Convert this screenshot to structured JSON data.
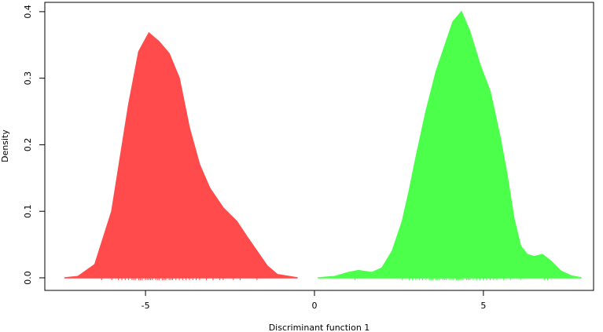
{
  "chart_data": {
    "type": "density",
    "x_label": "Discriminant function 1",
    "y_label": "Density",
    "xlim": [
      -7.98,
      8.26
    ],
    "ylim": [
      -0.0189,
      0.414
    ],
    "xticks": [
      -5,
      0,
      5
    ],
    "yticks": [
      {
        "value": 0,
        "label": "0.0"
      },
      0.1,
      0.2,
      0.3,
      0.4
    ],
    "series": [
      {
        "color": "#ff4b4b",
        "x": [
          -7.4,
          -7.0,
          -6.5,
          -6.0,
          -5.5,
          -5.2,
          -4.9,
          -4.6,
          -4.3,
          -4.0,
          -3.7,
          -3.4,
          -3.1,
          -2.7,
          -2.3,
          -2.0,
          -1.7,
          -1.4,
          -1.1,
          -0.5
        ],
        "values": [
          0.0,
          0.002,
          0.02,
          0.1,
          0.26,
          0.34,
          0.368,
          0.355,
          0.337,
          0.3,
          0.225,
          0.17,
          0.135,
          0.105,
          0.085,
          0.062,
          0.04,
          0.018,
          0.005,
          0.0
        ],
        "rug": [
          -6.3,
          -6.0,
          -5.8,
          -5.7,
          -5.6,
          -5.5,
          -5.4,
          -5.35,
          -5.3,
          -5.2,
          -5.15,
          -5.1,
          -5.0,
          -4.95,
          -4.9,
          -4.85,
          -4.8,
          -4.7,
          -4.65,
          -4.6,
          -4.5,
          -4.45,
          -4.4,
          -4.3,
          -4.25,
          -4.2,
          -4.1,
          -4.0,
          -3.9,
          -3.8,
          -3.7,
          -3.6,
          -3.5,
          -3.4,
          -3.2,
          -3.0,
          -2.8,
          -2.7,
          -2.4,
          -2.2,
          -1.7
        ]
      },
      {
        "color": "#4bff4b",
        "x": [
          0.1,
          0.6,
          1.0,
          1.3,
          1.7,
          2.0,
          2.3,
          2.6,
          2.8,
          3.0,
          3.3,
          3.6,
          3.9,
          4.1,
          4.35,
          4.6,
          4.9,
          5.2,
          5.5,
          5.7,
          5.9,
          6.1,
          6.3,
          6.5,
          6.75,
          7.0,
          7.3,
          7.6,
          7.9
        ],
        "values": [
          0.0,
          0.002,
          0.008,
          0.011,
          0.008,
          0.015,
          0.04,
          0.085,
          0.13,
          0.18,
          0.25,
          0.31,
          0.355,
          0.385,
          0.4,
          0.37,
          0.32,
          0.28,
          0.21,
          0.155,
          0.09,
          0.048,
          0.035,
          0.032,
          0.035,
          0.025,
          0.01,
          0.003,
          0.0
        ],
        "rug": [
          1.2,
          2.6,
          2.8,
          2.9,
          3.0,
          3.1,
          3.2,
          3.3,
          3.4,
          3.45,
          3.5,
          3.6,
          3.65,
          3.7,
          3.8,
          3.85,
          3.9,
          4.0,
          4.05,
          4.1,
          4.2,
          4.25,
          4.3,
          4.35,
          4.4,
          4.5,
          4.55,
          4.6,
          4.7,
          4.8,
          4.9,
          5.0,
          5.1,
          5.2,
          5.3,
          5.4,
          5.6,
          5.8,
          6.1,
          6.8,
          6.9
        ]
      }
    ]
  }
}
